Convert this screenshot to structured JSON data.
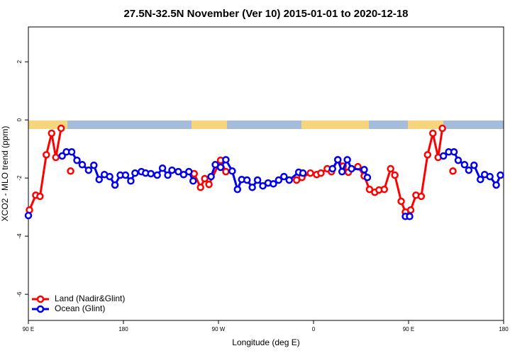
{
  "chart_data": {
    "type": "line",
    "title": "27.5N-32.5N November (Ver 10)   2015-01-01 to 2020-12-18",
    "x_label": "Longitude (deg E)",
    "y_label": "XCO2 - MLO trend (ppm)",
    "xlim": [
      90,
      540
    ],
    "ylim": [
      -6.9,
      3.2
    ],
    "xticks": [
      {
        "value": 90,
        "label": "90 E"
      },
      180,
      {
        "value": 270,
        "label": "90 W"
      },
      {
        "value": 360,
        "label": "0"
      },
      {
        "value": 450,
        "label": "90 E"
      },
      {
        "value": 540,
        "label": "180"
      }
    ],
    "yticks": [
      2,
      0,
      -2,
      -4,
      -6
    ],
    "legend": "bottom-left",
    "series": [
      {
        "name": "Land (Nadir&Glint)",
        "color": "#ff0000",
        "x": [
          91,
          97,
          101,
          107,
          112,
          116,
          121,
          null,
          130,
          null,
          247,
          253,
          257,
          261,
          272,
          277,
          null,
          344,
          349,
          357,
          363,
          367,
          373,
          377,
          383,
          388,
          393,
          402,
          408,
          413,
          418,
          422,
          427,
          433,
          437,
          443,
          447,
          452,
          457,
          462,
          468,
          473,
          478,
          482,
          null,
          492
        ],
        "values": [
          -3.1,
          -2.59,
          -2.63,
          -1.2,
          -0.46,
          -1.29,
          -0.29,
          null,
          -1.76,
          null,
          -1.85,
          -2.32,
          -2.02,
          -2.22,
          -1.39,
          -1.78,
          null,
          -2.07,
          -1.98,
          -1.83,
          -1.88,
          -1.83,
          -1.68,
          -1.78,
          -1.37,
          -1.59,
          -1.8,
          -1.61,
          -1.93,
          -2.39,
          -2.49,
          -2.41,
          -2.39,
          -1.68,
          -1.9,
          -2.8,
          -3.17,
          -3.1,
          -2.59,
          -2.63,
          -1.2,
          -0.46,
          -1.29,
          -0.29,
          null,
          -1.76
        ]
      },
      {
        "name": "Ocean (Glint)",
        "color": "#0000ee",
        "x": [
          90,
          null,
          122,
          126,
          131,
          136,
          141,
          147,
          152,
          157,
          162,
          167,
          172,
          177,
          182,
          187,
          191,
          197,
          201,
          206,
          212,
          217,
          222,
          226,
          232,
          237,
          242,
          246,
          null,
          263,
          267,
          272,
          277,
          283,
          288,
          292,
          297,
          302,
          307,
          312,
          317,
          322,
          327,
          332,
          337,
          346,
          350,
          null,
          378,
          383,
          387,
          392,
          396,
          408,
          411,
          null,
          447,
          451,
          null,
          483,
          488,
          493,
          497,
          503,
          507,
          512,
          518,
          522,
          527,
          533,
          537
        ],
        "values": [
          -3.29,
          null,
          -1.24,
          -1.1,
          -1.1,
          -1.39,
          -1.54,
          -1.73,
          -1.56,
          -2.05,
          -1.88,
          -1.95,
          -2.24,
          -1.9,
          -1.9,
          -2.1,
          -1.83,
          -1.78,
          -1.83,
          -1.85,
          -1.9,
          -1.66,
          -1.9,
          -1.73,
          -1.78,
          -1.88,
          -1.78,
          -2.1,
          null,
          -1.95,
          -1.54,
          -1.63,
          -1.37,
          -1.76,
          -2.39,
          -2.05,
          -2.07,
          -2.32,
          -2.07,
          -2.27,
          -2.17,
          -2.2,
          -2.07,
          -1.95,
          -2.07,
          -1.8,
          -1.83,
          null,
          -1.68,
          -1.37,
          -1.78,
          -1.37,
          -1.68,
          -1.71,
          -1.98,
          null,
          -3.32,
          -3.32,
          null,
          -1.24,
          -1.1,
          -1.1,
          -1.39,
          -1.54,
          -1.73,
          -1.56,
          -2.05,
          -1.88,
          -1.95,
          -2.24,
          -1.9
        ]
      }
    ]
  }
}
